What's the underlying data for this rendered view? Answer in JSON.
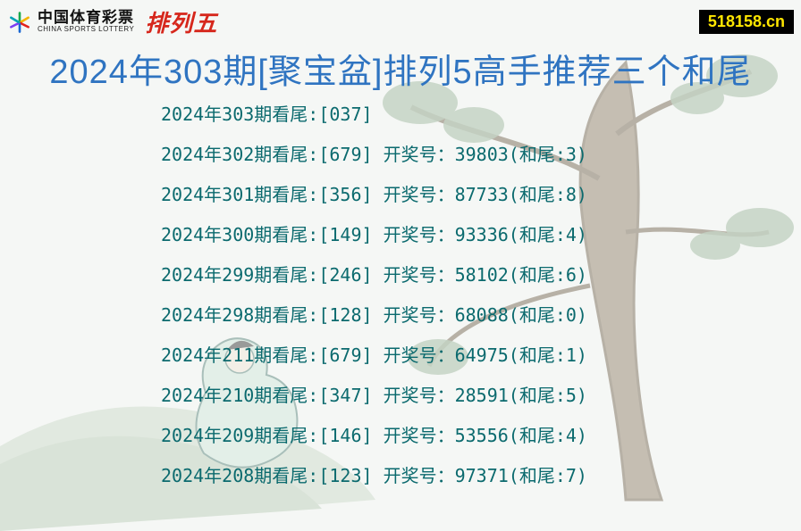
{
  "header": {
    "brand_cn": "中国体育彩票",
    "brand_en": "CHINA SPORTS LOTTERY",
    "product_name": "排列五",
    "site_badge": "518158.cn"
  },
  "title": "2024年303期[聚宝盆]排列5高手推荐三个和尾",
  "list": {
    "label_prefix": "2024年",
    "label_mid": "期看尾:",
    "result_label": "开奖号：",
    "tail_label_open": "(和尾:",
    "tail_label_close": ")",
    "rows": [
      {
        "period": "303",
        "picks": "[037]",
        "result": "",
        "tail": ""
      },
      {
        "period": "302",
        "picks": "[679]",
        "result": "39803",
        "tail": "3"
      },
      {
        "period": "301",
        "picks": "[356]",
        "result": "87733",
        "tail": "8"
      },
      {
        "period": "300",
        "picks": "[149]",
        "result": "93336",
        "tail": "4"
      },
      {
        "period": "299",
        "picks": "[246]",
        "result": "58102",
        "tail": "6"
      },
      {
        "period": "298",
        "picks": "[128]",
        "result": "68088",
        "tail": "0"
      },
      {
        "period": "211",
        "picks": "[679]",
        "result": "64975",
        "tail": "1"
      },
      {
        "period": "210",
        "picks": "[347]",
        "result": "28591",
        "tail": "5"
      },
      {
        "period": "209",
        "picks": "[146]",
        "result": "53556",
        "tail": "4"
      },
      {
        "period": "208",
        "picks": "[123]",
        "result": "97371",
        "tail": "7"
      }
    ]
  },
  "style": {
    "title_color": "#2f74c1",
    "row_color": "#0b6a6e",
    "product_color": "#d6271c",
    "badge_bg": "#000000",
    "badge_fg": "#ffe600",
    "page_bg": "#f5f7f5",
    "title_fontsize": 38,
    "row_fontsize": 20
  },
  "illustration": {
    "tree_stroke": "#7a6a56",
    "leaf_fill": "#8aa88a",
    "figure_robe": "#cfe6da",
    "ground_fill": "#cbd9c8"
  }
}
